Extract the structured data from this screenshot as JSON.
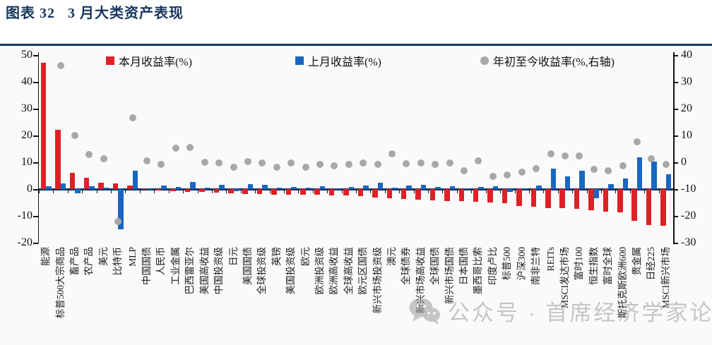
{
  "title": "图表 32   3 月大类资产表现",
  "watermark": {
    "text": "公众号 · 首席经济学家论坛"
  },
  "colors": {
    "accent_navy": "#17365d",
    "red": "#df2026",
    "blue": "#1966c2",
    "gray": "#a8a8a8"
  },
  "chart_data": {
    "type": "bar",
    "title": "3月大类资产表现",
    "legend_position": "top",
    "grid": false,
    "left_axis": {
      "min": -20,
      "max": 50,
      "ticks": [
        50,
        40,
        30,
        20,
        10,
        0,
        -10,
        -20
      ]
    },
    "right_axis": {
      "min": -30,
      "max": 40,
      "ticks": [
        40,
        30,
        20,
        10,
        0,
        -10,
        -20,
        -30
      ]
    },
    "categories": [
      "能源",
      "标普500大宗商品",
      "畜产品",
      "农产品",
      "美元",
      "比特币",
      "MLP",
      "中国国债",
      "人民币",
      "工业金属",
      "巴西雷亚尔",
      "美国高收益",
      "中国投资级",
      "日元",
      "美国国债",
      "全球投资级",
      "英镑",
      "美国投资级",
      "欧元",
      "欧洲投资级",
      "欧洲高收益",
      "全球高收益",
      "欧元区国债",
      "新兴市场投资级",
      "澳元",
      "全球债券",
      "新兴市场高收益",
      "全球国债",
      "新兴市场国债",
      "日本国债",
      "墨西哥比索",
      "印度卢比",
      "标普500",
      "沪深300",
      "南非兰特",
      "REITs",
      "MSCI发达市场",
      "富时100",
      "恒生指数",
      "富时全球",
      "斯托克斯欧洲600",
      "贵金属",
      "日经225",
      "MSCI新兴市场"
    ],
    "series": [
      {
        "name": "本月收益率(%)",
        "type": "bar",
        "axis": "left",
        "color": "#df2026",
        "values": [
          47.0,
          22.2,
          6.0,
          4.3,
          2.5,
          2.3,
          1.3,
          0.3,
          -0.5,
          -0.7,
          -0.9,
          -1.1,
          -1.2,
          -1.4,
          -1.7,
          -1.8,
          -1.9,
          -2.0,
          -2.1,
          -2.1,
          -2.2,
          -2.3,
          -2.5,
          -3.0,
          -3.3,
          -3.6,
          -3.8,
          -4.0,
          -4.3,
          -4.5,
          -4.6,
          -4.8,
          -5.3,
          -6.1,
          -6.6,
          -6.9,
          -7.1,
          -7.4,
          -7.7,
          -8.2,
          -8.6,
          -11.8,
          -13.3,
          -13.6
        ]
      },
      {
        "name": "上月收益率(%)",
        "type": "bar",
        "axis": "left",
        "color": "#1966c2",
        "values": [
          1.0,
          2.2,
          -1.5,
          1.2,
          0.6,
          -15.0,
          7.0,
          0.2,
          1.5,
          0.9,
          2.6,
          0.7,
          1.6,
          -0.7,
          1.9,
          1.6,
          0.5,
          0.9,
          0.7,
          1.0,
          0.4,
          0.8,
          1.4,
          2.4,
          0.6,
          1.3,
          1.6,
          0.9,
          1.0,
          0.4,
          0.9,
          1.0,
          -0.9,
          0.4,
          1.3,
          7.7,
          4.8,
          7.0,
          -3.3,
          1.9,
          4.1,
          11.8,
          10.3,
          5.7
        ]
      },
      {
        "name": "年初至今收益率(%,右轴)",
        "type": "scatter",
        "axis": "right",
        "color": "#a8a8a8",
        "values": [
          null,
          36.0,
          10.0,
          3.0,
          1.3,
          -22.0,
          16.5,
          0.5,
          -0.6,
          5.2,
          5.7,
          0.0,
          -0.2,
          -1.8,
          0.3,
          -0.2,
          -1.8,
          -0.2,
          -1.8,
          -0.7,
          -1.2,
          -0.7,
          -0.2,
          -0.7,
          3.1,
          -0.5,
          -0.2,
          -0.7,
          -0.2,
          -3.0,
          0.5,
          -5.3,
          -4.7,
          -3.7,
          -2.4,
          3.1,
          2.3,
          2.3,
          -2.6,
          -3.2,
          -1.3,
          7.6,
          1.4,
          -0.6
        ]
      }
    ]
  }
}
